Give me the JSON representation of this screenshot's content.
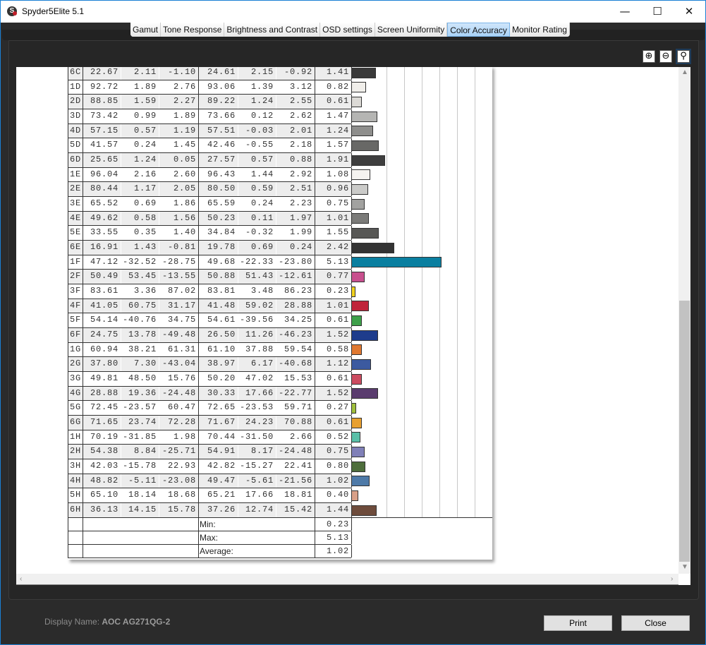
{
  "window": {
    "title": "Spyder5Elite 5.1",
    "minimize": "—",
    "maximize": "☐",
    "close": "✕"
  },
  "tabs": [
    {
      "label": "Gamut",
      "active": false
    },
    {
      "label": "Tone Response",
      "active": false
    },
    {
      "label": "Brightness and Contrast",
      "active": false
    },
    {
      "label": "OSD settings",
      "active": false
    },
    {
      "label": "Screen Uniformity",
      "active": false
    },
    {
      "label": "Color Accuracy",
      "active": true
    },
    {
      "label": "Monitor Rating",
      "active": false
    }
  ],
  "toolbar": {
    "zoom_in_icon": "zoom-in-icon",
    "zoom_out_icon": "zoom-out-icon",
    "zoom_fit_icon": "zoom-fit-icon"
  },
  "table": {
    "rows": [
      {
        "id": "6C",
        "L": "22.67",
        "a": "2.11",
        "b": "-1.10",
        "L2": "24.61",
        "a2": "2.15",
        "b2": "-0.92",
        "dE": "1.41",
        "color": "#3a3a3a"
      },
      {
        "id": "1D",
        "L": "92.72",
        "a": "1.89",
        "b": "2.76",
        "L2": "93.06",
        "a2": "1.39",
        "b2": "3.12",
        "dE": "0.82",
        "color": "#f0eeea"
      },
      {
        "id": "2D",
        "L": "88.85",
        "a": "1.59",
        "b": "2.27",
        "L2": "89.22",
        "a2": "1.24",
        "b2": "2.55",
        "dE": "0.61",
        "color": "#dcdad6"
      },
      {
        "id": "3D",
        "L": "73.42",
        "a": "0.99",
        "b": "1.89",
        "L2": "73.66",
        "a2": "0.12",
        "b2": "2.62",
        "dE": "1.47",
        "color": "#b5b5b3"
      },
      {
        "id": "4D",
        "L": "57.15",
        "a": "0.57",
        "b": "1.19",
        "L2": "57.51",
        "a2": "-0.03",
        "b2": "2.01",
        "dE": "1.24",
        "color": "#8e8e8c"
      },
      {
        "id": "5D",
        "L": "41.57",
        "a": "0.24",
        "b": "1.45",
        "L2": "42.46",
        "a2": "-0.55",
        "b2": "2.18",
        "dE": "1.57",
        "color": "#686866"
      },
      {
        "id": "6D",
        "L": "25.65",
        "a": "1.24",
        "b": "0.05",
        "L2": "27.57",
        "a2": "0.57",
        "b2": "0.88",
        "dE": "1.91",
        "color": "#3e3e3e"
      },
      {
        "id": "1E",
        "L": "96.04",
        "a": "2.16",
        "b": "2.60",
        "L2": "96.43",
        "a2": "1.44",
        "b2": "2.92",
        "dE": "1.08",
        "color": "#f5f3f0"
      },
      {
        "id": "2E",
        "L": "80.44",
        "a": "1.17",
        "b": "2.05",
        "L2": "80.50",
        "a2": "0.59",
        "b2": "2.51",
        "dE": "0.96",
        "color": "#cbcbc9"
      },
      {
        "id": "3E",
        "L": "65.52",
        "a": "0.69",
        "b": "1.86",
        "L2": "65.59",
        "a2": "0.24",
        "b2": "2.23",
        "dE": "0.75",
        "color": "#a2a2a0"
      },
      {
        "id": "4E",
        "L": "49.62",
        "a": "0.58",
        "b": "1.56",
        "L2": "50.23",
        "a2": "0.11",
        "b2": "1.97",
        "dE": "1.01",
        "color": "#7b7b79"
      },
      {
        "id": "5E",
        "L": "33.55",
        "a": "0.35",
        "b": "1.40",
        "L2": "34.84",
        "a2": "-0.32",
        "b2": "1.99",
        "dE": "1.55",
        "color": "#575755"
      },
      {
        "id": "6E",
        "L": "16.91",
        "a": "1.43",
        "b": "-0.81",
        "L2": "19.78",
        "a2": "0.69",
        "b2": "0.24",
        "dE": "2.42",
        "color": "#333333"
      },
      {
        "id": "1F",
        "L": "47.12",
        "a": "-32.52",
        "b": "-28.75",
        "L2": "49.68",
        "a2": "-22.33",
        "b2": "-23.80",
        "dE": "5.13",
        "color": "#0a7fa0"
      },
      {
        "id": "2F",
        "L": "50.49",
        "a": "53.45",
        "b": "-13.55",
        "L2": "50.88",
        "a2": "51.43",
        "b2": "-12.61",
        "dE": "0.77",
        "color": "#c8508e"
      },
      {
        "id": "3F",
        "L": "83.61",
        "a": "3.36",
        "b": "87.02",
        "L2": "83.81",
        "a2": "3.48",
        "b2": "86.23",
        "dE": "0.23",
        "color": "#f2d21e"
      },
      {
        "id": "4F",
        "L": "41.05",
        "a": "60.75",
        "b": "31.17",
        "L2": "41.48",
        "a2": "59.02",
        "b2": "28.88",
        "dE": "1.01",
        "color": "#c0243a"
      },
      {
        "id": "5F",
        "L": "54.14",
        "a": "-40.76",
        "b": "34.75",
        "L2": "54.61",
        "a2": "-39.56",
        "b2": "34.25",
        "dE": "0.61",
        "color": "#3ea04a"
      },
      {
        "id": "6F",
        "L": "24.75",
        "a": "13.78",
        "b": "-49.48",
        "L2": "26.50",
        "a2": "11.26",
        "b2": "-46.23",
        "dE": "1.52",
        "color": "#1e3c8c"
      },
      {
        "id": "1G",
        "L": "60.94",
        "a": "38.21",
        "b": "61.31",
        "L2": "61.10",
        "a2": "37.88",
        "b2": "59.54",
        "dE": "0.58",
        "color": "#e07830"
      },
      {
        "id": "2G",
        "L": "37.80",
        "a": "7.30",
        "b": "-43.04",
        "L2": "38.97",
        "a2": "6.17",
        "b2": "-40.68",
        "dE": "1.12",
        "color": "#3c5aa0"
      },
      {
        "id": "3G",
        "L": "49.81",
        "a": "48.50",
        "b": "15.76",
        "L2": "50.20",
        "a2": "47.02",
        "b2": "15.53",
        "dE": "0.61",
        "color": "#cc4c60"
      },
      {
        "id": "4G",
        "L": "28.88",
        "a": "19.36",
        "b": "-24.48",
        "L2": "30.33",
        "a2": "17.66",
        "b2": "-22.77",
        "dE": "1.52",
        "color": "#5a3c6e"
      },
      {
        "id": "5G",
        "L": "72.45",
        "a": "-23.57",
        "b": "60.47",
        "L2": "72.65",
        "a2": "-23.53",
        "b2": "59.71",
        "dE": "0.27",
        "color": "#a0c03c"
      },
      {
        "id": "6G",
        "L": "71.65",
        "a": "23.74",
        "b": "72.28",
        "L2": "71.67",
        "a2": "24.23",
        "b2": "70.88",
        "dE": "0.61",
        "color": "#e8a030"
      },
      {
        "id": "1H",
        "L": "70.19",
        "a": "-31.85",
        "b": "1.98",
        "L2": "70.44",
        "a2": "-31.50",
        "b2": "2.66",
        "dE": "0.52",
        "color": "#5ac0a8"
      },
      {
        "id": "2H",
        "L": "54.38",
        "a": "8.84",
        "b": "-25.71",
        "L2": "54.91",
        "a2": "8.17",
        "b2": "-24.48",
        "dE": "0.75",
        "color": "#8080b8"
      },
      {
        "id": "3H",
        "L": "42.03",
        "a": "-15.78",
        "b": "22.93",
        "L2": "42.82",
        "a2": "-15.27",
        "b2": "22.41",
        "dE": "0.80",
        "color": "#4e6e3c"
      },
      {
        "id": "4H",
        "L": "48.82",
        "a": "-5.11",
        "b": "-23.08",
        "L2": "49.47",
        "a2": "-5.61",
        "b2": "-21.56",
        "dE": "1.02",
        "color": "#4e7aa8"
      },
      {
        "id": "5H",
        "L": "65.10",
        "a": "18.14",
        "b": "18.68",
        "L2": "65.21",
        "a2": "17.66",
        "b2": "18.81",
        "dE": "0.40",
        "color": "#d8a088"
      },
      {
        "id": "6H",
        "L": "36.13",
        "a": "14.15",
        "b": "15.78",
        "L2": "37.26",
        "a2": "12.74",
        "b2": "15.42",
        "dE": "1.44",
        "color": "#6e4c3c"
      }
    ],
    "summary": [
      {
        "label": "Min:",
        "value": "0.23"
      },
      {
        "label": "Max:",
        "value": "5.13"
      },
      {
        "label": "Average:",
        "value": "1.02"
      }
    ]
  },
  "footer": {
    "display_name_label": "Display Name:",
    "display_name_value": "AOC AG271QG-2",
    "print": "Print",
    "close": "Close"
  }
}
